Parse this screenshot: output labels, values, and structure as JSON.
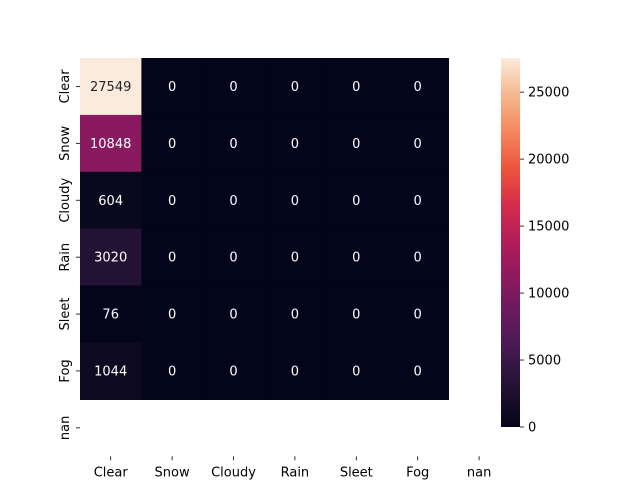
{
  "chart_data": {
    "type": "heatmap",
    "title": "",
    "xlabel": "",
    "ylabel": "",
    "x_categories": [
      "Clear",
      "Snow",
      "Cloudy",
      "Rain",
      "Sleet",
      "Fog",
      "nan"
    ],
    "y_categories": [
      "Clear",
      "Snow",
      "Cloudy",
      "Rain",
      "Sleet",
      "Fog",
      "nan"
    ],
    "values": [
      [
        27549,
        0,
        0,
        0,
        0,
        0,
        null
      ],
      [
        10848,
        0,
        0,
        0,
        0,
        0,
        null
      ],
      [
        604,
        0,
        0,
        0,
        0,
        0,
        null
      ],
      [
        3020,
        0,
        0,
        0,
        0,
        0,
        null
      ],
      [
        76,
        0,
        0,
        0,
        0,
        0,
        null
      ],
      [
        1044,
        0,
        0,
        0,
        0,
        0,
        null
      ],
      [
        null,
        null,
        null,
        null,
        null,
        null,
        null
      ]
    ],
    "colorbar": {
      "min": 0,
      "max": 27549,
      "ticks": [
        0,
        5000,
        10000,
        15000,
        20000,
        25000
      ],
      "colormap": "rocket"
    }
  }
}
